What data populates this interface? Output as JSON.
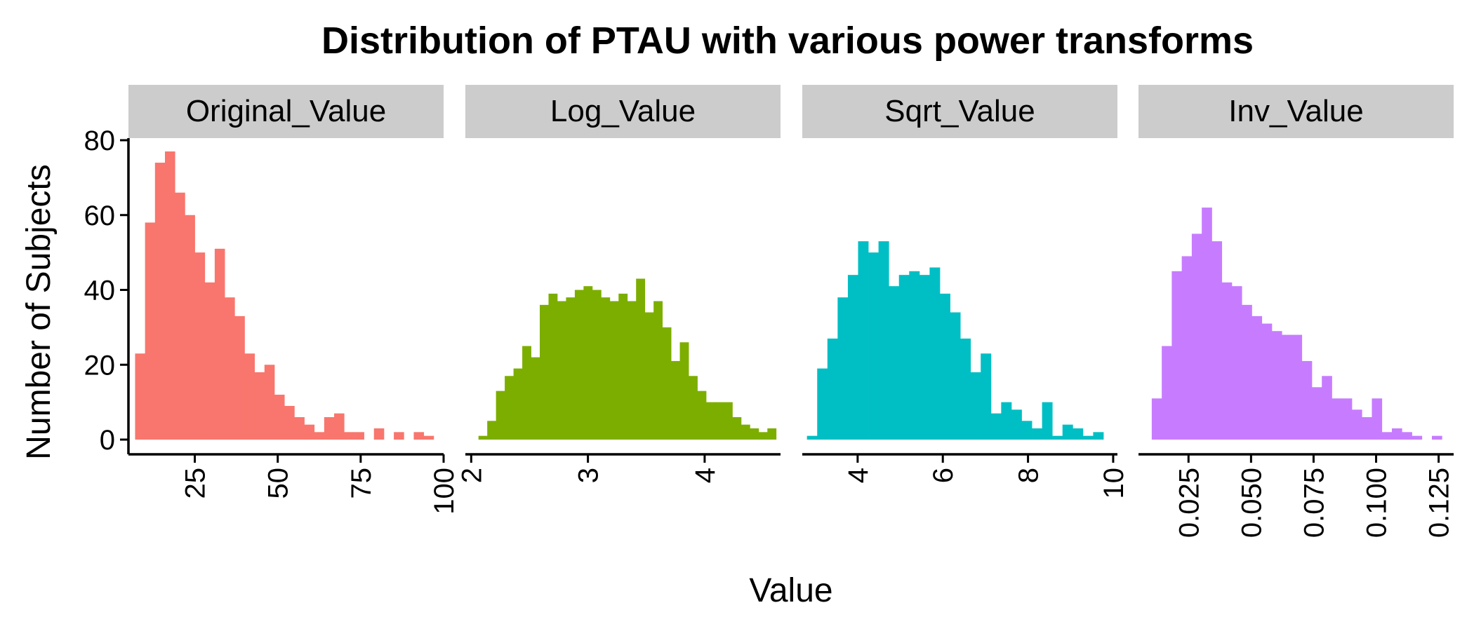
{
  "chart_data": {
    "type": "bar",
    "title": "Distribution of PTAU with various power transforms",
    "xlabel": "Value",
    "ylabel": "Number of Subjects",
    "ylim": [
      0,
      80
    ],
    "yticks": [
      0,
      20,
      40,
      60,
      80
    ],
    "grid": false,
    "legend": "none",
    "panels": [
      {
        "name": "Original_Value",
        "color": "#F8766D",
        "xlim": [
          5,
          100
        ],
        "xticks": [
          25,
          50,
          75,
          100
        ],
        "bins": [
          8.5,
          11.5,
          14.5,
          17.5,
          20.5,
          23.5,
          26.5,
          29.5,
          32.5,
          35.5,
          38.5,
          41.5,
          44.5,
          47.5,
          50.5,
          53.5,
          56.5,
          59.5,
          62.5,
          65.5,
          68.5,
          71.5,
          74.5,
          77.5,
          80.5,
          83.5,
          86.5,
          89.5,
          92.5,
          95.5
        ],
        "counts": [
          23,
          58,
          74,
          77,
          66,
          60,
          50,
          42,
          51,
          38,
          33,
          23,
          18,
          20,
          12,
          9,
          6,
          4,
          2,
          6,
          7,
          2,
          2,
          0,
          3,
          0,
          2,
          0,
          2,
          1
        ]
      },
      {
        "name": "Log_Value",
        "color": "#7CAE00",
        "xlim": [
          1.95,
          4.65
        ],
        "xticks": [
          2,
          3,
          4
        ],
        "bins": [
          2.1,
          2.175,
          2.25,
          2.325,
          2.4,
          2.475,
          2.55,
          2.625,
          2.7,
          2.775,
          2.85,
          2.925,
          3.0,
          3.075,
          3.15,
          3.225,
          3.3,
          3.375,
          3.45,
          3.525,
          3.6,
          3.675,
          3.75,
          3.825,
          3.9,
          3.975,
          4.05,
          4.125,
          4.2,
          4.275,
          4.35,
          4.425,
          4.5,
          4.575
        ],
        "counts": [
          1,
          5,
          13,
          17,
          19,
          25,
          22,
          36,
          39,
          37,
          38,
          40,
          41,
          40,
          38,
          37,
          39,
          37,
          43,
          34,
          37,
          30,
          21,
          26,
          17,
          13,
          10,
          10,
          10,
          6,
          4,
          3,
          2,
          3
        ]
      },
      {
        "name": "Sqrt_Value",
        "color": "#00BFC4",
        "xlim": [
          2.7,
          10.1
        ],
        "xticks": [
          4,
          6,
          8,
          10
        ],
        "bins": [
          2.93,
          3.17,
          3.41,
          3.65,
          3.89,
          4.13,
          4.37,
          4.61,
          4.85,
          5.09,
          5.33,
          5.57,
          5.81,
          6.05,
          6.29,
          6.53,
          6.77,
          7.01,
          7.25,
          7.49,
          7.73,
          7.97,
          8.21,
          8.45,
          8.69,
          8.93,
          9.17,
          9.41,
          9.65
        ],
        "counts": [
          1,
          19,
          27,
          38,
          44,
          53,
          50,
          53,
          41,
          44,
          45,
          44,
          46,
          39,
          34,
          27,
          18,
          23,
          7,
          10,
          8,
          5,
          3,
          10,
          1,
          4,
          3,
          1,
          2
        ]
      },
      {
        "name": "Inv_Value",
        "color": "#C77CFF",
        "xlim": [
          0.005,
          0.131
        ],
        "xticks": [
          0.025,
          0.05,
          0.075,
          0.1,
          0.125
        ],
        "xticklabels": [
          "0.025",
          "0.050",
          "0.075",
          "0.100",
          "0.125"
        ],
        "bins": [
          0.0123,
          0.0163,
          0.0203,
          0.0243,
          0.0283,
          0.0323,
          0.0363,
          0.0403,
          0.0443,
          0.0483,
          0.0523,
          0.0563,
          0.0603,
          0.0643,
          0.0683,
          0.0723,
          0.0763,
          0.0803,
          0.0843,
          0.0883,
          0.0923,
          0.0963,
          0.1003,
          0.1043,
          0.1083,
          0.1123,
          0.1163,
          0.1243
        ],
        "counts": [
          11,
          25,
          45,
          49,
          55,
          62,
          53,
          42,
          41,
          36,
          33,
          31,
          29,
          28,
          28,
          21,
          14,
          17,
          11,
          11,
          8,
          6,
          11,
          2,
          3,
          2,
          1,
          1
        ]
      }
    ]
  }
}
